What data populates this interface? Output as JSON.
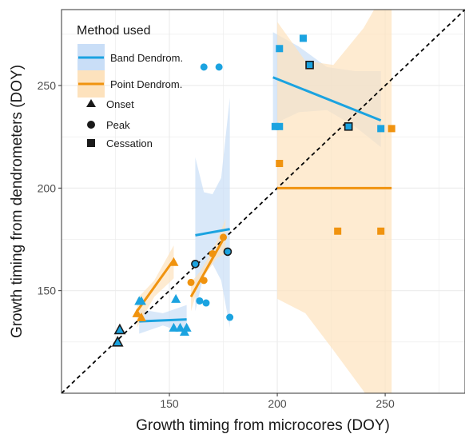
{
  "chart_data": {
    "type": "scatter",
    "xlabel": "Growth timing from microcores (DOY)",
    "ylabel": "Growth timing from dendrometers (DOY)",
    "xlim": [
      100,
      287
    ],
    "ylim": [
      100,
      287
    ],
    "xticks": [
      150,
      200,
      250
    ],
    "yticks": [
      150,
      200,
      250
    ],
    "grid": true,
    "reference_line": "1:1",
    "legend": {
      "title": "Method used",
      "placement": "top-left",
      "method_entries": [
        {
          "label": "Band Dendrom.",
          "color": "#1ba3e0"
        },
        {
          "label": "Point Dendrom.",
          "color": "#f0930f"
        }
      ],
      "shape_entries": [
        {
          "label": "Onset",
          "shape": "triangle"
        },
        {
          "label": "Peak",
          "shape": "circle"
        },
        {
          "label": "Cessation",
          "shape": "square"
        }
      ]
    },
    "colors": {
      "band": "#1ba3e0",
      "point": "#f0930f",
      "band_ribbon": "#c9def7",
      "point_ribbon": "#fde2bd",
      "grid": "#ebebeb"
    },
    "series": [
      {
        "name": "Band Dendrom.",
        "points": [
          {
            "phase": "Onset",
            "x": 126,
            "y": 125,
            "outlined": true
          },
          {
            "phase": "Onset",
            "x": 127,
            "y": 131,
            "outlined": true
          },
          {
            "phase": "Onset",
            "x": 136,
            "y": 145,
            "outlined": false
          },
          {
            "phase": "Onset",
            "x": 137,
            "y": 145,
            "outlined": false
          },
          {
            "phase": "Onset",
            "x": 153,
            "y": 146,
            "outlined": false
          },
          {
            "phase": "Onset",
            "x": 152,
            "y": 132,
            "outlined": false
          },
          {
            "phase": "Onset",
            "x": 155,
            "y": 132,
            "outlined": false
          },
          {
            "phase": "Onset",
            "x": 157,
            "y": 130,
            "outlined": false
          },
          {
            "phase": "Onset",
            "x": 158,
            "y": 132,
            "outlined": false
          },
          {
            "phase": "Peak",
            "x": 162,
            "y": 163,
            "outlined": true
          },
          {
            "phase": "Peak",
            "x": 166,
            "y": 259,
            "outlined": false
          },
          {
            "phase": "Peak",
            "x": 173,
            "y": 259,
            "outlined": false
          },
          {
            "phase": "Peak",
            "x": 164,
            "y": 145,
            "outlined": false
          },
          {
            "phase": "Peak",
            "x": 167,
            "y": 144,
            "outlined": false
          },
          {
            "phase": "Peak",
            "x": 177,
            "y": 169,
            "outlined": true
          },
          {
            "phase": "Peak",
            "x": 178,
            "y": 137,
            "outlined": false
          },
          {
            "phase": "Cessation",
            "x": 199,
            "y": 230,
            "outlined": false
          },
          {
            "phase": "Cessation",
            "x": 201,
            "y": 230,
            "outlined": false
          },
          {
            "phase": "Cessation",
            "x": 201,
            "y": 268,
            "outlined": false
          },
          {
            "phase": "Cessation",
            "x": 212,
            "y": 273,
            "outlined": false
          },
          {
            "phase": "Cessation",
            "x": 215,
            "y": 260,
            "outlined": true
          },
          {
            "phase": "Cessation",
            "x": 233,
            "y": 230,
            "outlined": true
          },
          {
            "phase": "Cessation",
            "x": 248,
            "y": 229,
            "outlined": false
          }
        ],
        "fits": [
          {
            "x": [
              136,
              158
            ],
            "y": [
              135,
              136
            ],
            "lower": [
              [
                136,
                129
              ],
              [
                147,
                133
              ],
              [
                158,
                129
              ]
            ],
            "upper": [
              [
                136,
                141
              ],
              [
                147,
                139
              ],
              [
                158,
                143
              ]
            ]
          },
          {
            "x": [
              162,
              178
            ],
            "y": [
              177,
              180
            ],
            "lower": [
              [
                162,
                140
              ],
              [
                166,
                158
              ],
              [
                170,
                163
              ],
              [
                174,
                155
              ],
              [
                178,
                132
              ]
            ],
            "upper": [
              [
                162,
                215
              ],
              [
                166,
                198
              ],
              [
                170,
                197
              ],
              [
                174,
                205
              ],
              [
                178,
                244
              ]
            ]
          },
          {
            "x": [
              198,
              248
            ],
            "y": [
              254,
              233
            ],
            "lower": [
              [
                198,
                231
              ],
              [
                210,
                237
              ],
              [
                223,
                238
              ],
              [
                236,
                230
              ],
              [
                248,
                220
              ]
            ],
            "upper": [
              [
                198,
                276
              ],
              [
                210,
                269
              ],
              [
                223,
                259
              ],
              [
                236,
                257
              ],
              [
                248,
                257
              ]
            ]
          }
        ]
      },
      {
        "name": "Point Dendrom.",
        "points": [
          {
            "phase": "Onset",
            "x": 135,
            "y": 139,
            "outlined": false
          },
          {
            "phase": "Onset",
            "x": 137,
            "y": 137,
            "outlined": false
          },
          {
            "phase": "Onset",
            "x": 152,
            "y": 164,
            "outlined": false
          },
          {
            "phase": "Peak",
            "x": 160,
            "y": 154,
            "outlined": false
          },
          {
            "phase": "Peak",
            "x": 166,
            "y": 155,
            "outlined": false
          },
          {
            "phase": "Peak",
            "x": 170,
            "y": 168,
            "outlined": false
          },
          {
            "phase": "Peak",
            "x": 175,
            "y": 176,
            "outlined": false
          },
          {
            "phase": "Cessation",
            "x": 201,
            "y": 212,
            "outlined": false
          },
          {
            "phase": "Cessation",
            "x": 228,
            "y": 179,
            "outlined": false
          },
          {
            "phase": "Cessation",
            "x": 248,
            "y": 179,
            "outlined": false
          },
          {
            "phase": "Cessation",
            "x": 253,
            "y": 229,
            "outlined": false
          }
        ],
        "fits": [
          {
            "x": [
              135,
              152
            ],
            "y": [
              140,
              165
            ],
            "lower": [
              [
                135,
                132
              ],
              [
                143,
                147
              ],
              [
                152,
                156
              ]
            ],
            "upper": [
              [
                135,
                146
              ],
              [
                143,
                155
              ],
              [
                152,
                172
              ]
            ]
          },
          {
            "x": [
              160,
              176
            ],
            "y": [
              147,
              177
            ],
            "lower": [
              [
                160,
                140
              ],
              [
                164,
                154
              ],
              [
                168,
                160
              ],
              [
                172,
                166
              ],
              [
                176,
                168
              ]
            ],
            "upper": [
              [
                160,
                154
              ],
              [
                164,
                159
              ],
              [
                168,
                166
              ],
              [
                172,
                174
              ],
              [
                176,
                185
              ]
            ]
          },
          {
            "x": [
              200,
              253
            ],
            "y": [
              200,
              200
            ],
            "lower": [
              [
                200,
                146
              ],
              [
                213,
                139
              ],
              [
                226,
                121
              ],
              [
                240,
                101
              ],
              [
                253,
                80
              ]
            ],
            "upper": [
              [
                200,
                281
              ],
              [
                213,
                262
              ],
              [
                226,
                260
              ],
              [
                240,
                278
              ],
              [
                253,
                302
              ]
            ]
          }
        ]
      }
    ]
  }
}
